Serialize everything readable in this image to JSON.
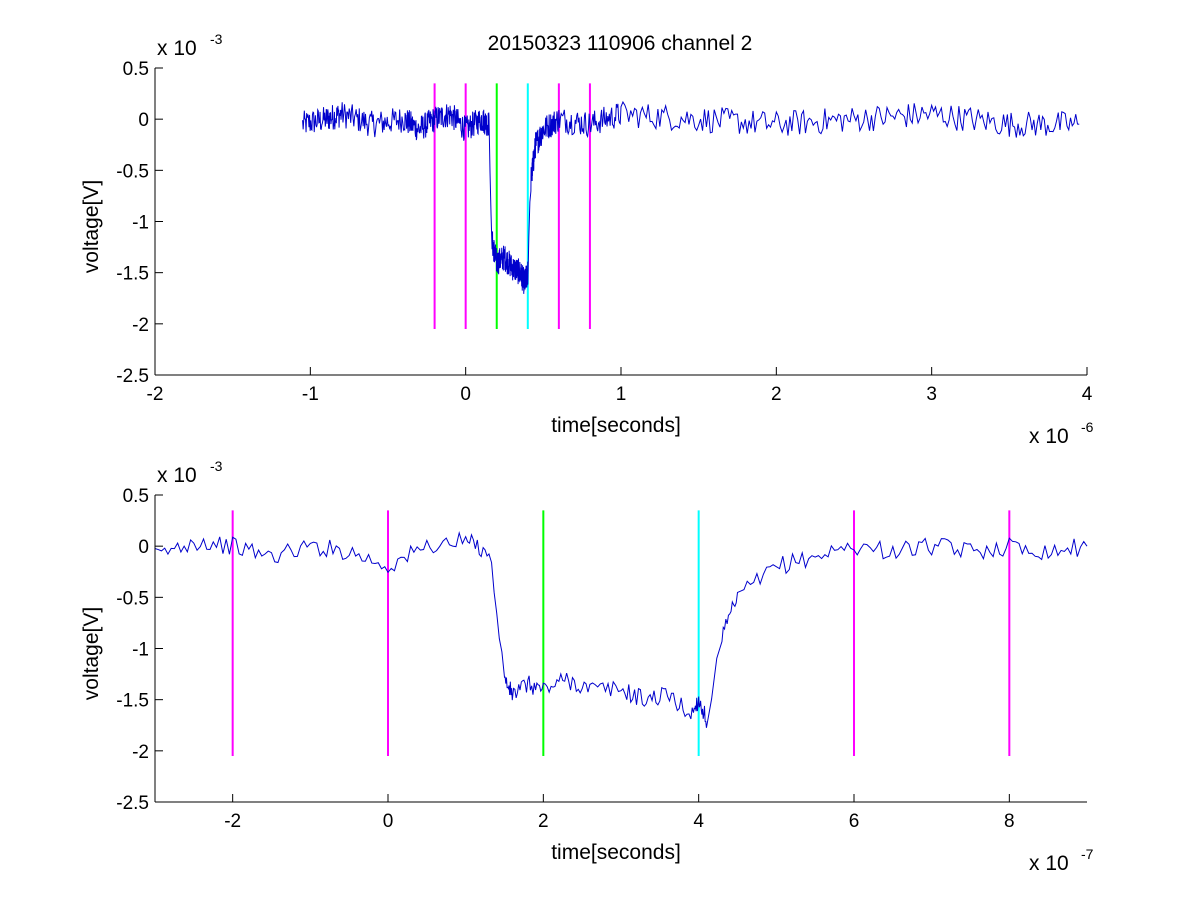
{
  "figure": {
    "title": "20150323 110906 channel 2"
  },
  "chart_data": [
    {
      "type": "line",
      "title": "20150323 110906 channel 2",
      "xlabel": "time[seconds]",
      "ylabel": "voltage[V]",
      "x_multiplier_label": "x 10",
      "x_multiplier_exponent": "-6",
      "y_multiplier_label": "x 10",
      "y_multiplier_exponent": "-3",
      "xlim": [
        -2,
        4
      ],
      "ylim": [
        -2.5,
        0.5
      ],
      "xticks": [
        "-2",
        "-1",
        "0",
        "1",
        "2",
        "3",
        "4"
      ],
      "yticks": [
        "0.5",
        "0",
        "-0.5",
        "-1",
        "-1.5",
        "-2",
        "-2.5"
      ],
      "grid": false,
      "series": [
        {
          "color": "#0000cc",
          "x": [
            -1.05,
            -0.9,
            -0.8,
            -0.6,
            -0.4,
            -0.3,
            -0.2,
            -0.1,
            0.0,
            0.1,
            0.15,
            0.17,
            0.2,
            0.25,
            0.3,
            0.35,
            0.38,
            0.4,
            0.42,
            0.45,
            0.5,
            0.6,
            0.8,
            1.0,
            1.5,
            2.0,
            2.5,
            3.0,
            3.5,
            3.95
          ],
          "y": [
            -0.05,
            0.0,
            0.05,
            -0.05,
            0.0,
            -0.1,
            0.0,
            0.05,
            -0.1,
            0.0,
            -0.05,
            -1.2,
            -1.4,
            -1.35,
            -1.45,
            -1.5,
            -1.6,
            -1.5,
            -0.6,
            -0.25,
            -0.1,
            0.0,
            -0.05,
            0.05,
            0.0,
            -0.05,
            0.0,
            0.05,
            -0.05,
            -0.05
          ]
        }
      ],
      "vlines": [
        {
          "x": -0.2,
          "color": "#ff00ff",
          "y_from": -2.05,
          "y_to": 0.35
        },
        {
          "x": 0.0,
          "color": "#ff00ff",
          "y_from": -2.05,
          "y_to": 0.35
        },
        {
          "x": 0.2,
          "color": "#00ff00",
          "y_from": -2.05,
          "y_to": 0.35
        },
        {
          "x": 0.4,
          "color": "#00ffff",
          "y_from": -2.05,
          "y_to": 0.35
        },
        {
          "x": 0.6,
          "color": "#ff00ff",
          "y_from": -2.05,
          "y_to": 0.35
        },
        {
          "x": 0.8,
          "color": "#ff00ff",
          "y_from": -2.05,
          "y_to": 0.35
        }
      ]
    },
    {
      "type": "line",
      "xlabel": "time[seconds]",
      "ylabel": "voltage[V]",
      "x_multiplier_label": "x 10",
      "x_multiplier_exponent": "-7",
      "y_multiplier_label": "x 10",
      "y_multiplier_exponent": "-3",
      "xlim": [
        -3,
        9
      ],
      "ylim": [
        -2.5,
        0.5
      ],
      "xticks": [
        "-2",
        "0",
        "2",
        "4",
        "6",
        "8"
      ],
      "yticks": [
        "0.5",
        "0",
        "-0.5",
        "-1",
        "-1.5",
        "-2",
        "-2.5"
      ],
      "grid": false,
      "series": [
        {
          "color": "#0000cc",
          "x": [
            -3.0,
            -2.5,
            -2.0,
            -1.5,
            -1.0,
            -0.5,
            0.0,
            0.5,
            1.0,
            1.3,
            1.4,
            1.5,
            1.6,
            1.8,
            2.0,
            2.3,
            2.6,
            3.0,
            3.3,
            3.6,
            3.9,
            4.0,
            4.1,
            4.3,
            4.5,
            5.0,
            5.5,
            6.0,
            6.5,
            7.0,
            7.5,
            8.0,
            8.5,
            9.0
          ],
          "y": [
            -0.1,
            0.05,
            0.0,
            -0.1,
            0.0,
            -0.05,
            -0.2,
            0.0,
            0.05,
            -0.05,
            -0.6,
            -1.3,
            -1.45,
            -1.35,
            -1.4,
            -1.3,
            -1.4,
            -1.4,
            -1.5,
            -1.45,
            -1.65,
            -1.5,
            -1.7,
            -0.9,
            -0.5,
            -0.2,
            -0.1,
            0.0,
            -0.05,
            0.0,
            -0.05,
            0.0,
            -0.05,
            0.0
          ]
        }
      ],
      "vlines": [
        {
          "x": -2,
          "color": "#ff00ff",
          "y_from": -2.05,
          "y_to": 0.35
        },
        {
          "x": 0,
          "color": "#ff00ff",
          "y_from": -2.05,
          "y_to": 0.35
        },
        {
          "x": 2,
          "color": "#00ff00",
          "y_from": -2.05,
          "y_to": 0.35
        },
        {
          "x": 4,
          "color": "#00ffff",
          "y_from": -2.05,
          "y_to": 0.35
        },
        {
          "x": 6,
          "color": "#ff00ff",
          "y_from": -2.05,
          "y_to": 0.35
        },
        {
          "x": 8,
          "color": "#ff00ff",
          "y_from": -2.05,
          "y_to": 0.35
        }
      ]
    }
  ]
}
